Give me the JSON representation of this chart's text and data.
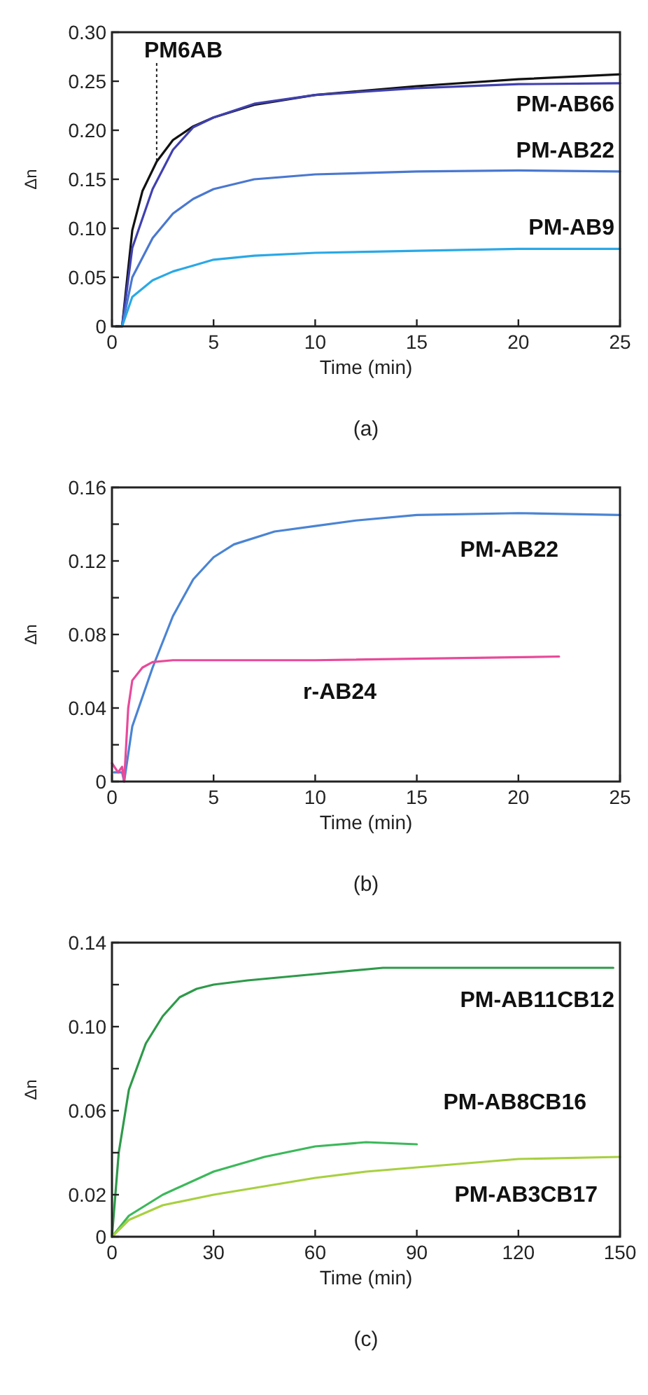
{
  "chart_data": [
    {
      "type": "line",
      "title": "(a)",
      "xlabel": "Time (min)",
      "ylabel": "Δn",
      "xlim": [
        0,
        25
      ],
      "ylim": [
        0,
        0.3
      ],
      "xticks": [
        0,
        5,
        10,
        15,
        20,
        25
      ],
      "yticks": [
        0,
        0.05,
        {
          "value": 0.1,
          "label": "0.10"
        },
        0.15,
        {
          "value": 0.2,
          "label": "0.20"
        },
        0.25,
        {
          "value": 0.3,
          "label": "0.30"
        }
      ],
      "grid": false,
      "legend": false,
      "marker": "none",
      "line_style": "solid",
      "series": [
        {
          "name": "PM6AB",
          "color": "#111111",
          "x": [
            0.2,
            0.5,
            1,
            1.5,
            2.2,
            3,
            4,
            5,
            7,
            10,
            15,
            20,
            25
          ],
          "values": [
            0,
            0,
            0.098,
            0.138,
            0.168,
            0.19,
            0.204,
            0.213,
            0.226,
            0.236,
            0.245,
            0.252,
            0.257
          ]
        },
        {
          "name": "PM-AB66",
          "color": "#4040b0",
          "x": [
            0.2,
            0.5,
            1,
            2,
            3,
            4,
            5,
            7,
            10,
            15,
            20,
            25
          ],
          "values": [
            0,
            0,
            0.08,
            0.14,
            0.18,
            0.203,
            0.213,
            0.227,
            0.236,
            0.243,
            0.247,
            0.248
          ]
        },
        {
          "name": "PM-AB22",
          "color": "#4a78d0",
          "x": [
            0.2,
            0.5,
            1,
            2,
            3,
            4,
            5,
            7,
            10,
            15,
            20,
            25
          ],
          "values": [
            0,
            0,
            0.05,
            0.09,
            0.115,
            0.13,
            0.14,
            0.15,
            0.155,
            0.158,
            0.159,
            0.158
          ]
        },
        {
          "name": "PM-AB9",
          "color": "#2aa8e6",
          "x": [
            0.2,
            0.5,
            1,
            2,
            3,
            4,
            5,
            7,
            10,
            15,
            20,
            25
          ],
          "values": [
            0,
            0,
            0.03,
            0.047,
            0.056,
            0.062,
            0.068,
            0.072,
            0.075,
            0.077,
            0.079,
            0.079
          ]
        }
      ]
    },
    {
      "type": "line",
      "title": "(b)",
      "xlabel": "Time (min)",
      "ylabel": "Δn",
      "xlim": [
        0,
        25
      ],
      "ylim": [
        0,
        0.16
      ],
      "xticks": [
        0,
        5,
        10,
        15,
        20,
        25
      ],
      "yticks": [
        0,
        {
          "value": 0.02,
          "label": null
        },
        0.04,
        {
          "value": 0.06,
          "label": null
        },
        0.08,
        {
          "value": 0.1,
          "label": null
        },
        0.12,
        {
          "value": 0.14,
          "label": null
        },
        0.16
      ],
      "grid": false,
      "legend": false,
      "marker": "none",
      "line_style": "solid",
      "series": [
        {
          "name": "PM-AB22",
          "color": "#4a84d4",
          "x": [
            0.1,
            0.5,
            0.6,
            1,
            2,
            3,
            4,
            5,
            6,
            8,
            10,
            12,
            15,
            20,
            25
          ],
          "values": [
            0.005,
            0.005,
            0,
            0.03,
            0.062,
            0.09,
            0.11,
            0.122,
            0.129,
            0.136,
            0.139,
            0.142,
            0.145,
            0.146,
            0.145
          ]
        },
        {
          "name": "r-AB24",
          "color": "#e84a9a",
          "x": [
            0,
            0.3,
            0.5,
            0.6,
            0.8,
            1,
            1.5,
            2,
            3,
            10,
            22
          ],
          "values": [
            0.01,
            0.005,
            0.008,
            0,
            0.04,
            0.055,
            0.062,
            0.065,
            0.066,
            0.066,
            0.068
          ]
        }
      ]
    },
    {
      "type": "line",
      "title": "(c)",
      "xlabel": "Time (min)",
      "ylabel": "Δn",
      "xlim": [
        0,
        150
      ],
      "ylim": [
        0,
        0.14
      ],
      "xticks": [
        0,
        30,
        60,
        90,
        120,
        150
      ],
      "yticks": [
        0,
        0.02,
        {
          "value": 0.04,
          "label": null
        },
        0.06,
        {
          "value": 0.08,
          "label": null
        },
        {
          "value": 0.1,
          "label": "0.10"
        },
        {
          "value": 0.12,
          "label": null
        },
        0.14
      ],
      "grid": false,
      "legend": false,
      "marker": "none",
      "line_style": "solid",
      "series": [
        {
          "name": "PM-AB11CB12",
          "color": "#2e9a4a",
          "x": [
            0,
            2,
            5,
            10,
            15,
            20,
            25,
            30,
            40,
            60,
            80,
            100,
            148
          ],
          "values": [
            0,
            0.04,
            0.07,
            0.092,
            0.105,
            0.114,
            0.118,
            0.12,
            0.122,
            0.125,
            0.128,
            0.128,
            0.128
          ]
        },
        {
          "name": "PM-AB8CB16",
          "color": "#3cb85a",
          "x": [
            0,
            5,
            15,
            30,
            45,
            60,
            75,
            90
          ],
          "values": [
            0,
            0.01,
            0.02,
            0.031,
            0.038,
            0.043,
            0.045,
            0.044
          ]
        },
        {
          "name": "PM-AB3CB17",
          "color": "#a8d040",
          "x": [
            0,
            5,
            15,
            30,
            45,
            60,
            75,
            90,
            105,
            120,
            150
          ],
          "values": [
            0,
            0.008,
            0.015,
            0.02,
            0.024,
            0.028,
            0.031,
            0.033,
            0.035,
            0.037,
            0.038
          ]
        }
      ]
    }
  ]
}
